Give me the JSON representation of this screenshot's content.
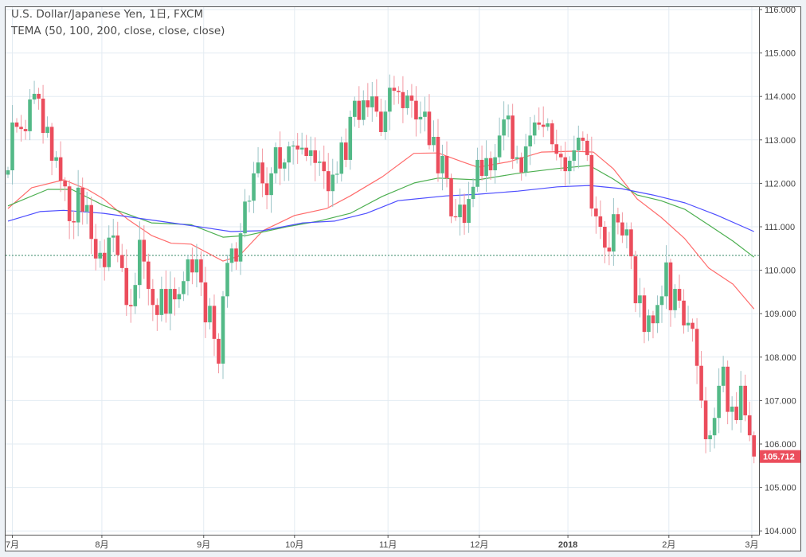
{
  "legend": {
    "title": "U.S. Dollar/Japanese Yen, 1日, FXCM",
    "indicator": "TEMA (50, 100, 200, close, close, close)"
  },
  "colors": {
    "up": "#53b987",
    "down": "#eb4d5c",
    "up_wick": "#9bc4c7",
    "down_wick": "#f29aa3",
    "tema50": "#ff6b6b",
    "tema100": "#4caf50",
    "tema200": "#4d4dff",
    "price_tag": "#eb4d5c",
    "reference_line": "#3a8a6a"
  },
  "chart_data": {
    "type": "candlestick",
    "symbol": "USDJPY",
    "interval": "1日",
    "ylim": [
      104,
      116
    ],
    "y_ticks": [
      "104.000",
      "105.000",
      "106.000",
      "107.000",
      "108.000",
      "109.000",
      "110.000",
      "111.000",
      "112.000",
      "113.000",
      "114.000",
      "115.000",
      "116.000"
    ],
    "x_ticks": [
      {
        "label": "7月",
        "index": 1
      },
      {
        "label": "8月",
        "index": 21.4
      },
      {
        "label": "9月",
        "index": 44.6
      },
      {
        "label": "10月",
        "index": 65.3
      },
      {
        "label": "11月",
        "index": 86.6
      },
      {
        "label": "12月",
        "index": 107.4
      },
      {
        "label": "2018",
        "index": 127.6,
        "bold": true
      },
      {
        "label": "2月",
        "index": 150.6
      },
      {
        "label": "3月",
        "index": 169.5
      }
    ],
    "first_open": 112.2,
    "closes": [
      112.3,
      113.4,
      113.3,
      113.25,
      113.2,
      113.93,
      114.06,
      113.95,
      113.16,
      113.3,
      112.52,
      112.6,
      112.06,
      111.93,
      111.13,
      111.1,
      111.9,
      111.35,
      111.5,
      110.72,
      110.27,
      110.4,
      110.07,
      110.75,
      110.8,
      110.35,
      110.05,
      109.2,
      109.17,
      109.66,
      110.7,
      110.2,
      109.57,
      109.2,
      108.97,
      109.57,
      109.0,
      109.57,
      109.33,
      109.45,
      109.75,
      110.25,
      109.95,
      110.25,
      109.72,
      108.8,
      109.18,
      108.42,
      107.85,
      109.4,
      110.17,
      110.5,
      110.2,
      110.85,
      111.58,
      111.6,
      112.23,
      112.48,
      112.0,
      111.73,
      112.23,
      112.83,
      112.34,
      112.48,
      112.85,
      112.87,
      112.78,
      112.82,
      112.63,
      112.76,
      112.47,
      112.5,
      112.28,
      111.82,
      112.2,
      112.22,
      112.94,
      112.54,
      113.53,
      113.9,
      113.46,
      113.91,
      113.75,
      114.0,
      113.65,
      113.18,
      113.65,
      114.2,
      114.13,
      114.1,
      113.73,
      114.02,
      113.9,
      113.47,
      113.53,
      113.65,
      112.88,
      113.07,
      112.23,
      112.63,
      112.12,
      111.24,
      111.22,
      111.51,
      111.09,
      111.64,
      111.92,
      112.54,
      112.17,
      112.58,
      112.3,
      112.6,
      113.1,
      113.47,
      113.56,
      112.56,
      112.6,
      112.25,
      112.85,
      113.1,
      113.4,
      113.35,
      113.3,
      113.38,
      112.9,
      112.68,
      112.6,
      112.28,
      112.52,
      112.76,
      113.05,
      112.98,
      112.65,
      111.42,
      111.24,
      111.0,
      110.52,
      110.43,
      111.29,
      111.1,
      110.8,
      110.94,
      110.32,
      109.24,
      109.42,
      108.58,
      108.96,
      108.78,
      109.2,
      109.4,
      110.18,
      109.08,
      109.57,
      109.3,
      108.73,
      108.79,
      108.65,
      107.8,
      107.0,
      106.11,
      106.2,
      106.6,
      107.34,
      107.78,
      106.74,
      106.86,
      106.55,
      107.34,
      106.66,
      106.2,
      105.712
    ],
    "series": [
      {
        "name": "TEMA 50",
        "color_key": "tema50",
        "points": [
          [
            0,
            111.42
          ],
          [
            5.4,
            111.9
          ],
          [
            12.7,
            112.08
          ],
          [
            18.1,
            111.86
          ],
          [
            21.8,
            111.64
          ],
          [
            27.2,
            111.18
          ],
          [
            32.7,
            110.8
          ],
          [
            37.2,
            110.62
          ],
          [
            41.7,
            110.6
          ],
          [
            49,
            110.21
          ],
          [
            52.6,
            110.32
          ],
          [
            58.1,
            110.91
          ],
          [
            65.3,
            111.26
          ],
          [
            72.6,
            111.42
          ],
          [
            78,
            111.71
          ],
          [
            85.3,
            112.15
          ],
          [
            92.5,
            112.69
          ],
          [
            98,
            112.7
          ],
          [
            103.4,
            112.5
          ],
          [
            107.1,
            112.37
          ],
          [
            114.3,
            112.5
          ],
          [
            121.6,
            112.72
          ],
          [
            128.9,
            112.74
          ],
          [
            133.4,
            112.72
          ],
          [
            137.9,
            112.34
          ],
          [
            143.4,
            111.64
          ],
          [
            148.8,
            111.22
          ],
          [
            154.2,
            110.73
          ],
          [
            159.7,
            110.05
          ],
          [
            165.2,
            109.68
          ],
          [
            170,
            109.11
          ]
        ]
      },
      {
        "name": "TEMA 100",
        "color_key": "tema100",
        "points": [
          [
            0,
            111.48
          ],
          [
            9.1,
            111.86
          ],
          [
            14.5,
            111.86
          ],
          [
            21.8,
            111.49
          ],
          [
            32.7,
            111.09
          ],
          [
            41.7,
            111.05
          ],
          [
            49,
            110.76
          ],
          [
            54.4,
            110.8
          ],
          [
            63.5,
            111.0
          ],
          [
            70.8,
            111.13
          ],
          [
            78,
            111.31
          ],
          [
            85.3,
            111.7
          ],
          [
            92.6,
            112.01
          ],
          [
            98,
            112.12
          ],
          [
            107.1,
            112.08
          ],
          [
            116.2,
            112.23
          ],
          [
            125.2,
            112.34
          ],
          [
            132.5,
            112.41
          ],
          [
            137.9,
            112.1
          ],
          [
            143.4,
            111.73
          ],
          [
            148.8,
            111.6
          ],
          [
            154.3,
            111.4
          ],
          [
            159.7,
            111.04
          ],
          [
            165.2,
            110.67
          ],
          [
            170,
            110.3
          ]
        ]
      },
      {
        "name": "TEMA 200",
        "color_key": "tema200",
        "points": [
          [
            0,
            111.13
          ],
          [
            7.3,
            111.35
          ],
          [
            12.7,
            111.38
          ],
          [
            21.8,
            111.31
          ],
          [
            34.5,
            111.13
          ],
          [
            43.6,
            111.0
          ],
          [
            50.8,
            110.89
          ],
          [
            58.1,
            110.91
          ],
          [
            67.2,
            111.09
          ],
          [
            74.4,
            111.13
          ],
          [
            81.7,
            111.31
          ],
          [
            88.9,
            111.6
          ],
          [
            99.8,
            111.71
          ],
          [
            107.1,
            111.75
          ],
          [
            116.2,
            111.82
          ],
          [
            125.2,
            111.92
          ],
          [
            132.5,
            111.95
          ],
          [
            139.7,
            111.88
          ],
          [
            147,
            111.73
          ],
          [
            154.3,
            111.55
          ],
          [
            161.5,
            111.27
          ],
          [
            170,
            110.89
          ]
        ]
      }
    ],
    "reference_price": 110.34,
    "last_price": "105.712",
    "last_price_value": 105.712
  }
}
